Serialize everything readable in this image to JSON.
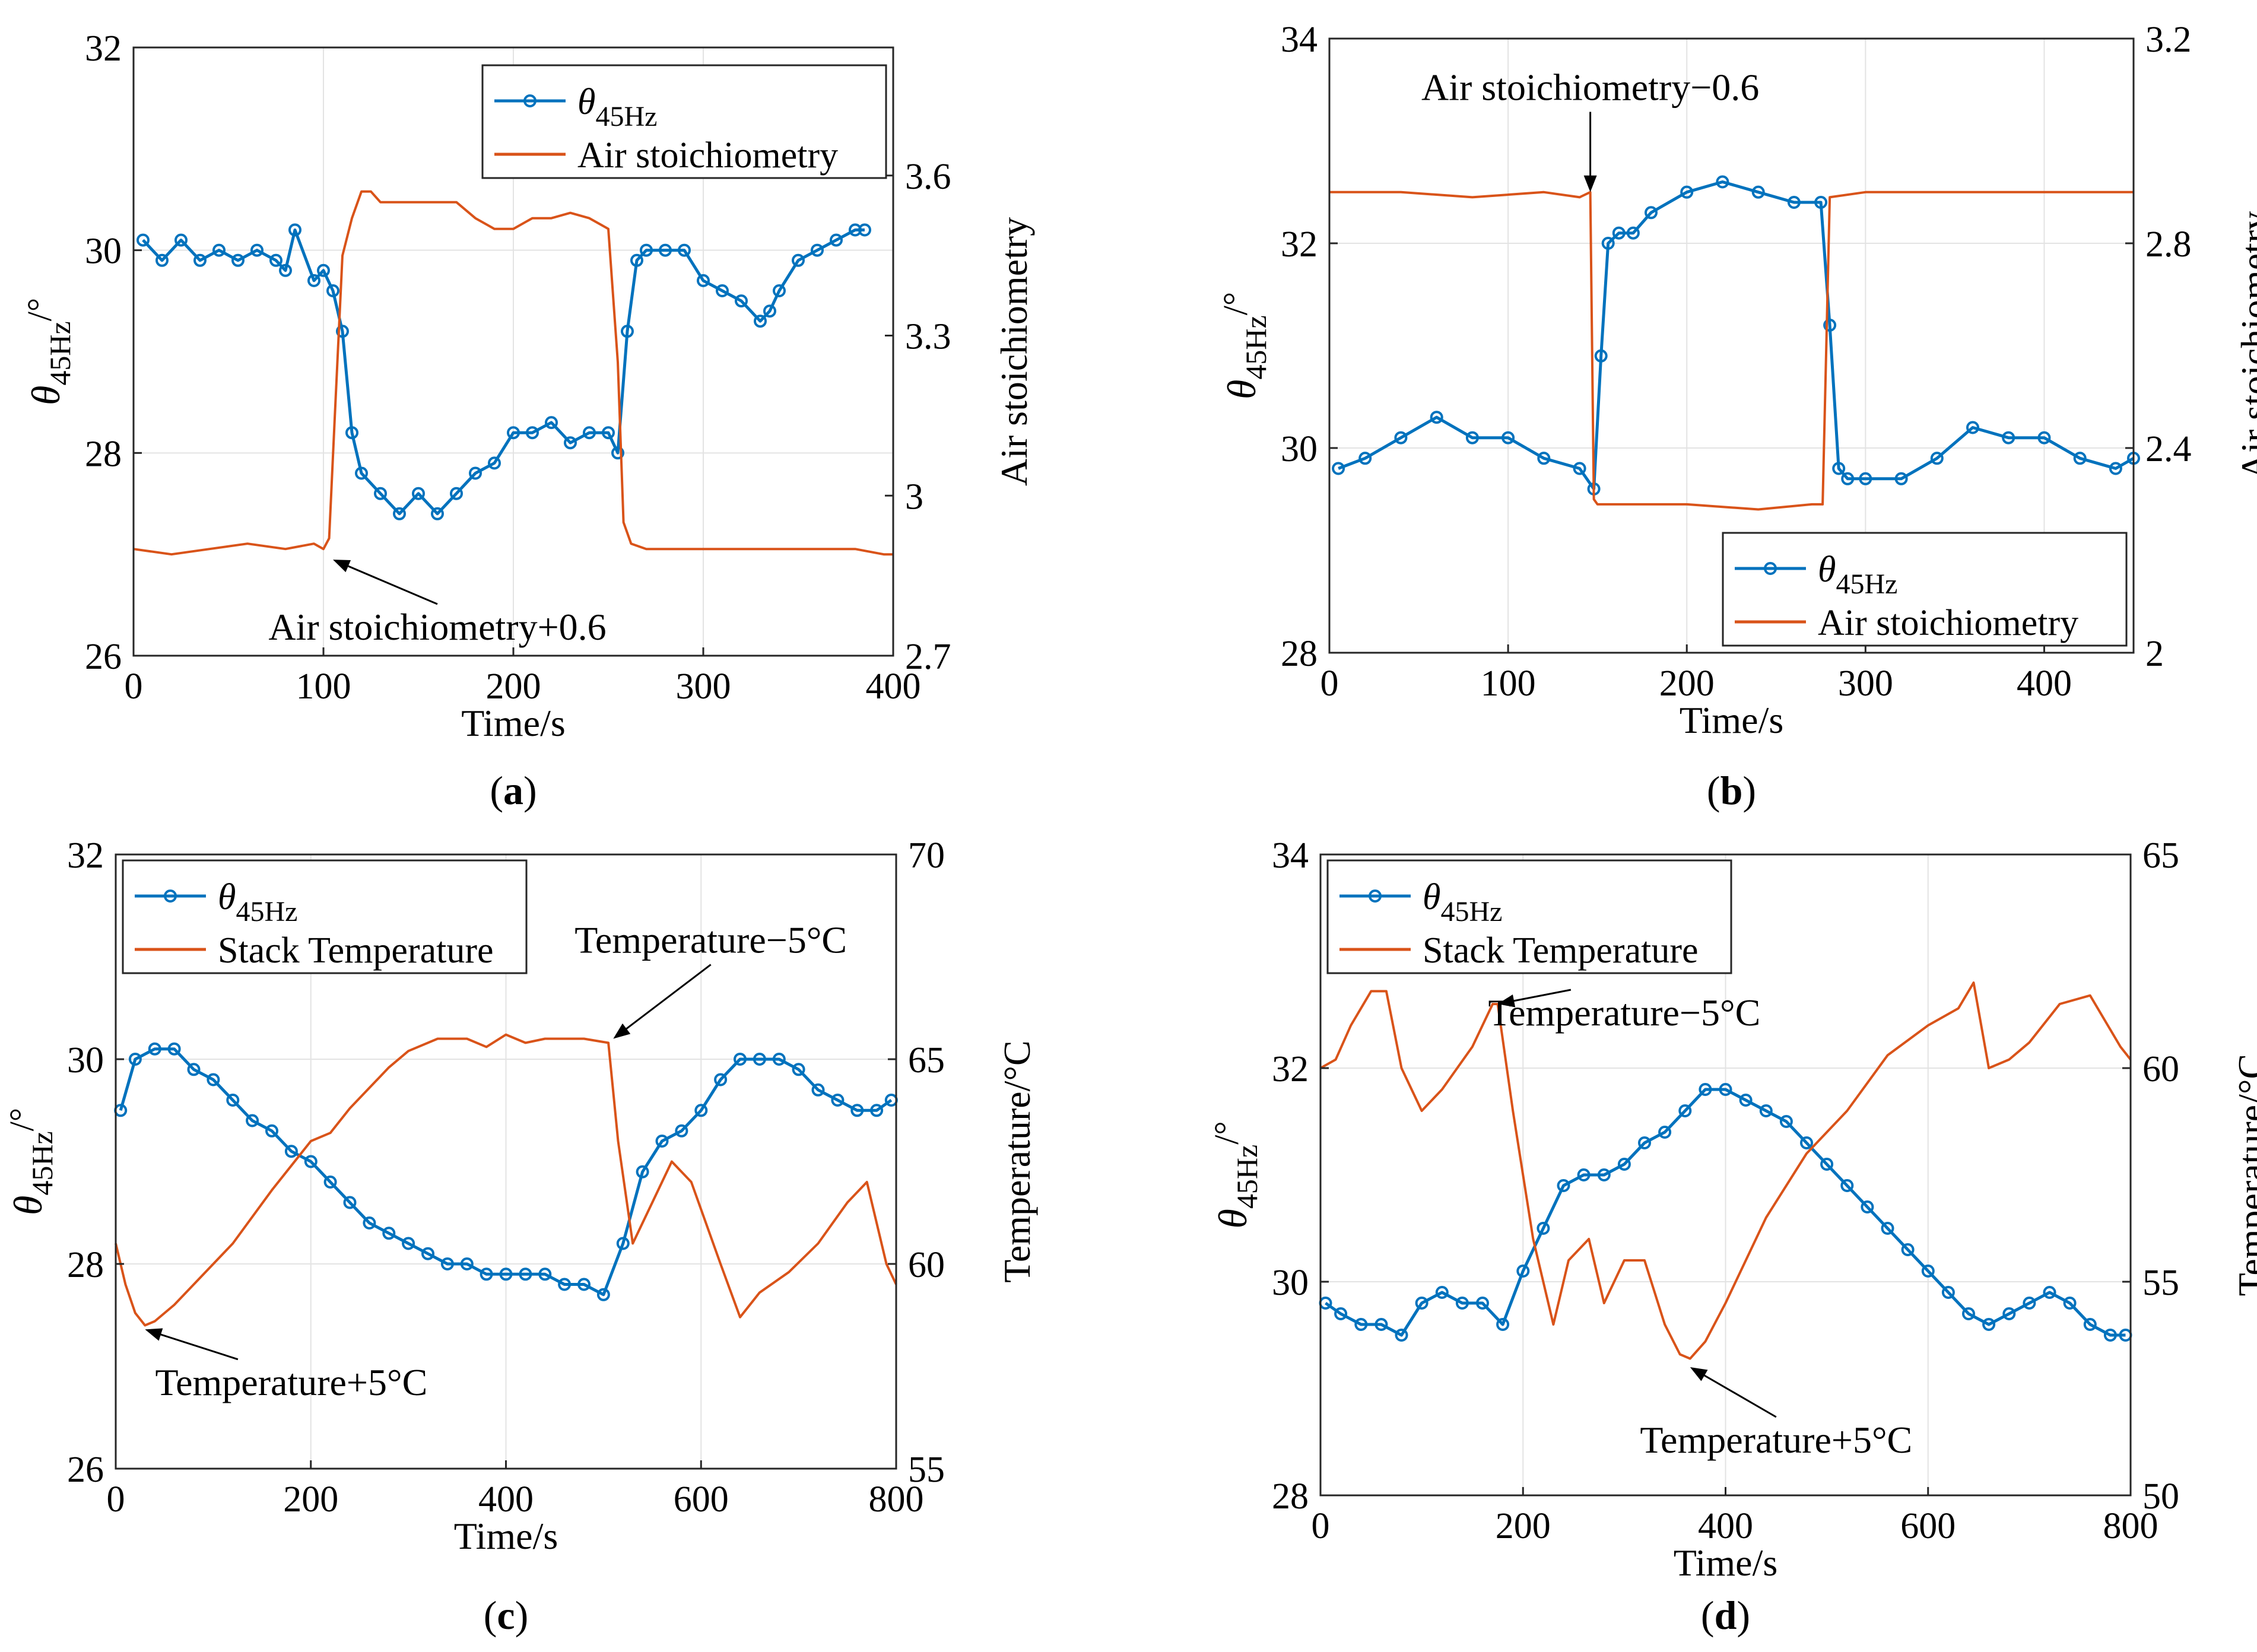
{
  "colors": {
    "theta": "#0072BD",
    "right": "#D95319",
    "axis": "#262626",
    "grid": "#e3e3e3"
  },
  "chart_data": [
    {
      "id": "a",
      "type": "line",
      "panel_label": "a",
      "xlabel": "Time/s",
      "ylabel": {
        "main": "θ",
        "sub": "45Hz",
        "unit": "/°"
      },
      "ylabel_right": "Air stoichiometry",
      "xlim": [
        0,
        400
      ],
      "ylim": [
        26,
        32
      ],
      "ylim_right": [
        2.7,
        3.84
      ],
      "xticks": [
        0,
        100,
        200,
        300,
        400
      ],
      "yticks": [
        26,
        28,
        30,
        32
      ],
      "yticks_right": [
        2.7,
        3,
        3.3,
        3.6
      ],
      "legend": {
        "position": "top-right",
        "entries": [
          {
            "main": "θ",
            "sub": "45Hz"
          },
          {
            "main": "Air stoichiometry",
            "sub": ""
          }
        ]
      },
      "annotations": [
        {
          "text": "Air stoichiometry+0.6",
          "target": [
            105,
            2.88
          ],
          "label_at": [
            160,
            2.73
          ],
          "anchor": "middle"
        }
      ],
      "series": [
        {
          "name": "θ45Hz",
          "axis": "left",
          "markers": true,
          "x": [
            5,
            15,
            25,
            35,
            45,
            55,
            65,
            75,
            80,
            85,
            95,
            100,
            105,
            110,
            115,
            120,
            130,
            140,
            150,
            160,
            170,
            180,
            190,
            200,
            210,
            220,
            230,
            240,
            250,
            255,
            260,
            265,
            270,
            280,
            290,
            300,
            310,
            320,
            330,
            335,
            340,
            350,
            360,
            370,
            380,
            385
          ],
          "y": [
            30.1,
            29.9,
            30.1,
            29.9,
            30.0,
            29.9,
            30.0,
            29.9,
            29.8,
            30.2,
            29.7,
            29.8,
            29.6,
            29.2,
            28.2,
            27.8,
            27.6,
            27.4,
            27.6,
            27.4,
            27.6,
            27.8,
            27.9,
            28.2,
            28.2,
            28.3,
            28.1,
            28.2,
            28.2,
            28.0,
            29.2,
            29.9,
            30.0,
            30.0,
            30.0,
            29.7,
            29.6,
            29.5,
            29.3,
            29.4,
            29.6,
            29.9,
            30.0,
            30.1,
            30.2,
            30.2
          ]
        },
        {
          "name": "Air stoichiometry",
          "axis": "right",
          "markers": false,
          "x": [
            0,
            20,
            40,
            60,
            80,
            95,
            100,
            103,
            106,
            110,
            115,
            120,
            125,
            130,
            150,
            170,
            180,
            190,
            200,
            210,
            220,
            230,
            240,
            250,
            255,
            258,
            262,
            270,
            290,
            310,
            330,
            350,
            370,
            380,
            395,
            400
          ],
          "y": [
            2.9,
            2.89,
            2.9,
            2.91,
            2.9,
            2.91,
            2.9,
            2.92,
            3.15,
            3.45,
            3.52,
            3.57,
            3.57,
            3.55,
            3.55,
            3.55,
            3.52,
            3.5,
            3.5,
            3.52,
            3.52,
            3.53,
            3.52,
            3.5,
            3.25,
            2.95,
            2.91,
            2.9,
            2.9,
            2.9,
            2.9,
            2.9,
            2.9,
            2.9,
            2.89,
            2.89
          ]
        }
      ]
    },
    {
      "id": "b",
      "type": "line",
      "panel_label": "b",
      "xlabel": "Time/s",
      "ylabel": {
        "main": "θ",
        "sub": "45Hz",
        "unit": "/°"
      },
      "ylabel_right": "Air stoichiometry",
      "xlim": [
        0,
        450
      ],
      "ylim": [
        28,
        34
      ],
      "ylim_right": [
        2.0,
        3.2
      ],
      "xticks": [
        0,
        100,
        200,
        300,
        400
      ],
      "yticks": [
        28,
        30,
        32,
        34
      ],
      "yticks_right": [
        2.0,
        2.4,
        2.8,
        3.2
      ],
      "legend": {
        "position": "bottom-right",
        "entries": [
          {
            "main": "θ",
            "sub": "45Hz"
          },
          {
            "main": "Air stoichiometry",
            "sub": ""
          }
        ]
      },
      "annotations": [
        {
          "text": "Air stoichiometry−0.6",
          "target": [
            146,
            2.9
          ],
          "label_at": [
            146,
            3.08
          ],
          "anchor": "middle"
        }
      ],
      "series": [
        {
          "name": "θ45Hz",
          "axis": "left",
          "markers": true,
          "x": [
            5,
            20,
            40,
            60,
            80,
            100,
            120,
            140,
            148,
            152,
            156,
            162,
            170,
            180,
            200,
            220,
            240,
            260,
            275,
            280,
            285,
            290,
            300,
            320,
            340,
            360,
            380,
            400,
            420,
            440,
            450
          ],
          "y": [
            29.8,
            29.9,
            30.1,
            30.3,
            30.1,
            30.1,
            29.9,
            29.8,
            29.6,
            30.9,
            32.0,
            32.1,
            32.1,
            32.3,
            32.5,
            32.6,
            32.5,
            32.4,
            32.4,
            31.2,
            29.8,
            29.7,
            29.7,
            29.7,
            29.9,
            30.2,
            30.1,
            30.1,
            29.9,
            29.8,
            29.9
          ]
        },
        {
          "name": "Air stoichiometry",
          "axis": "right",
          "markers": false,
          "x": [
            0,
            40,
            80,
            120,
            140,
            146,
            148,
            150,
            160,
            200,
            240,
            270,
            276,
            280,
            300,
            340,
            380,
            420,
            450
          ],
          "y": [
            2.9,
            2.9,
            2.89,
            2.9,
            2.89,
            2.9,
            2.3,
            2.29,
            2.29,
            2.29,
            2.28,
            2.29,
            2.29,
            2.89,
            2.9,
            2.9,
            2.9,
            2.9,
            2.9
          ]
        }
      ]
    },
    {
      "id": "c",
      "type": "line",
      "panel_label": "c",
      "xlabel": "Time/s",
      "ylabel": {
        "main": "θ",
        "sub": "45Hz",
        "unit": "/°"
      },
      "ylabel_right": "Temperature/°C",
      "xlim": [
        0,
        800
      ],
      "ylim": [
        26,
        32
      ],
      "ylim_right": [
        55,
        70
      ],
      "xticks": [
        0,
        200,
        400,
        600,
        800
      ],
      "yticks": [
        26,
        28,
        30,
        32
      ],
      "yticks_right": [
        55,
        60,
        65,
        70
      ],
      "legend": {
        "position": "top-left",
        "entries": [
          {
            "main": "θ",
            "sub": "45Hz"
          },
          {
            "main": "Stack Temperature",
            "sub": ""
          }
        ]
      },
      "annotations": [
        {
          "text": "Temperature−5°C",
          "target": [
            510,
            65.5
          ],
          "label_at": [
            610,
            67.6
          ],
          "anchor": "middle"
        },
        {
          "text": "Temperature+5°C",
          "target": [
            30,
            58.4
          ],
          "label_at": [
            180,
            56.8
          ],
          "anchor": "middle"
        }
      ],
      "series": [
        {
          "name": "θ45Hz",
          "axis": "left",
          "markers": true,
          "x": [
            5,
            20,
            40,
            60,
            80,
            100,
            120,
            140,
            160,
            180,
            200,
            220,
            240,
            260,
            280,
            300,
            320,
            340,
            360,
            380,
            400,
            420,
            440,
            460,
            480,
            500,
            520,
            540,
            560,
            580,
            600,
            620,
            640,
            660,
            680,
            700,
            720,
            740,
            760,
            780,
            795
          ],
          "y": [
            29.5,
            30.0,
            30.1,
            30.1,
            29.9,
            29.8,
            29.6,
            29.4,
            29.3,
            29.1,
            29.0,
            28.8,
            28.6,
            28.4,
            28.3,
            28.2,
            28.1,
            28.0,
            28.0,
            27.9,
            27.9,
            27.9,
            27.9,
            27.8,
            27.8,
            27.7,
            28.2,
            28.9,
            29.2,
            29.3,
            29.5,
            29.8,
            30.0,
            30.0,
            30.0,
            29.9,
            29.7,
            29.6,
            29.5,
            29.5,
            29.6
          ]
        },
        {
          "name": "Stack Temperature",
          "axis": "right",
          "markers": false,
          "x": [
            0,
            10,
            20,
            30,
            40,
            60,
            80,
            120,
            160,
            200,
            220,
            240,
            260,
            280,
            300,
            330,
            360,
            380,
            400,
            420,
            440,
            480,
            505,
            515,
            530,
            550,
            570,
            590,
            620,
            640,
            660,
            690,
            720,
            750,
            770,
            790,
            800
          ],
          "y": [
            60.5,
            59.5,
            58.8,
            58.5,
            58.6,
            59.0,
            59.5,
            60.5,
            61.8,
            63.0,
            63.2,
            63.8,
            64.3,
            64.8,
            65.2,
            65.5,
            65.5,
            65.3,
            65.6,
            65.4,
            65.5,
            65.5,
            65.4,
            63.0,
            60.5,
            61.5,
            62.5,
            62.0,
            60.0,
            58.7,
            59.3,
            59.8,
            60.5,
            61.5,
            62.0,
            60.0,
            59.5
          ]
        }
      ]
    },
    {
      "id": "d",
      "type": "line",
      "panel_label": "d",
      "xlabel": "Time/s",
      "ylabel": {
        "main": "θ",
        "sub": "45Hz",
        "unit": "/°"
      },
      "ylabel_right": "Temperature/°C",
      "xlim": [
        0,
        800
      ],
      "ylim": [
        28,
        34
      ],
      "ylim_right": [
        50,
        65
      ],
      "xticks": [
        0,
        200,
        400,
        600,
        800
      ],
      "yticks": [
        28,
        30,
        32,
        34
      ],
      "yticks_right": [
        50,
        55,
        60,
        65
      ],
      "legend": {
        "position": "top-left",
        "entries": [
          {
            "main": "θ",
            "sub": "45Hz"
          },
          {
            "main": "Stack Temperature",
            "sub": ""
          }
        ]
      },
      "annotations": [
        {
          "text": "Temperature−5°C",
          "target": [
            175,
            61.5
          ],
          "label_at": [
            300,
            61.0
          ],
          "anchor": "middle"
        },
        {
          "text": "Temperature+5°C",
          "target": [
            365,
            53.0
          ],
          "label_at": [
            450,
            51.0
          ],
          "anchor": "middle"
        }
      ],
      "series": [
        {
          "name": "θ45Hz",
          "axis": "left",
          "markers": true,
          "x": [
            5,
            20,
            40,
            60,
            80,
            100,
            120,
            140,
            160,
            180,
            200,
            220,
            240,
            260,
            280,
            300,
            320,
            340,
            360,
            380,
            400,
            420,
            440,
            460,
            480,
            500,
            520,
            540,
            560,
            580,
            600,
            620,
            640,
            660,
            680,
            700,
            720,
            740,
            760,
            780,
            795
          ],
          "y": [
            29.8,
            29.7,
            29.6,
            29.6,
            29.5,
            29.8,
            29.9,
            29.8,
            29.8,
            29.6,
            30.1,
            30.5,
            30.9,
            31.0,
            31.0,
            31.1,
            31.3,
            31.4,
            31.6,
            31.8,
            31.8,
            31.7,
            31.6,
            31.5,
            31.3,
            31.1,
            30.9,
            30.7,
            30.5,
            30.3,
            30.1,
            29.9,
            29.7,
            29.6,
            29.7,
            29.8,
            29.9,
            29.8,
            29.6,
            29.5,
            29.5
          ]
        },
        {
          "name": "Stack Temperature",
          "axis": "right",
          "markers": false,
          "x": [
            0,
            15,
            30,
            50,
            65,
            80,
            100,
            120,
            150,
            170,
            175,
            190,
            210,
            230,
            245,
            265,
            280,
            300,
            320,
            340,
            355,
            365,
            380,
            400,
            440,
            480,
            520,
            560,
            600,
            630,
            645,
            660,
            680,
            700,
            730,
            760,
            790,
            800
          ],
          "y": [
            60.0,
            60.2,
            61.0,
            61.8,
            61.8,
            60.0,
            59.0,
            59.5,
            60.5,
            61.5,
            61.5,
            59.0,
            56.0,
            54.0,
            55.5,
            56.0,
            54.5,
            55.5,
            55.5,
            54.0,
            53.3,
            53.2,
            53.6,
            54.5,
            56.5,
            58.0,
            59.0,
            60.3,
            61.0,
            61.4,
            62.0,
            60.0,
            60.2,
            60.6,
            61.5,
            61.7,
            60.5,
            60.2
          ]
        }
      ]
    }
  ]
}
